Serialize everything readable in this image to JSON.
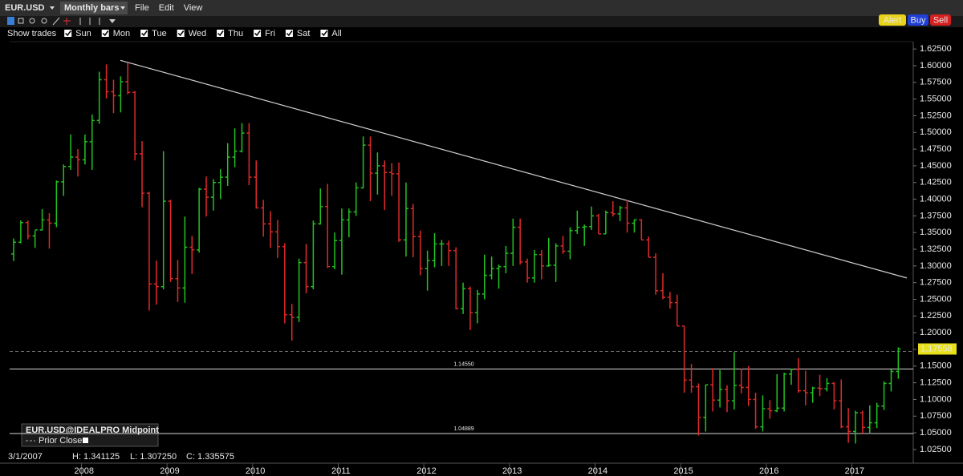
{
  "toolbar": {
    "symbol": "EUR.USD",
    "bar_type": "Monthly bars",
    "menus": [
      "File",
      "Edit",
      "View"
    ],
    "buttons": [
      "Alert",
      "Buy",
      "Sell"
    ]
  },
  "filter": {
    "label": "Show trades",
    "days": [
      "Sun",
      "Mon",
      "Tue",
      "Wed",
      "Thu",
      "Fri",
      "Sat",
      "All"
    ]
  },
  "legend": {
    "title": "EUR.USD@IDEALPRO Midpoint",
    "prior_close": "Prior Close"
  },
  "status": {
    "date": "3/1/2007",
    "high": "H: 1.341125",
    "low": "L: 1.307250",
    "close": "C: 1.335575"
  },
  "chart_data": {
    "type": "ohlc",
    "categories": [
      null,
      null,
      null,
      null,
      null,
      null,
      null,
      null,
      null,
      null,
      "2008",
      null,
      null,
      null,
      null,
      null,
      null,
      null,
      null,
      null,
      null,
      null,
      "2009",
      null,
      null,
      null,
      null,
      null,
      null,
      null,
      null,
      null,
      null,
      null,
      "2010",
      null,
      null,
      null,
      null,
      null,
      null,
      null,
      null,
      null,
      null,
      null,
      "2011",
      null,
      null,
      null,
      null,
      null,
      null,
      null,
      null,
      null,
      null,
      null,
      "2012",
      null,
      null,
      null,
      null,
      null,
      null,
      null,
      null,
      null,
      null,
      null,
      "2013",
      null,
      null,
      null,
      null,
      null,
      null,
      null,
      null,
      null,
      null,
      null,
      "2014",
      null,
      null,
      null,
      null,
      null,
      null,
      null,
      null,
      null,
      null,
      null,
      "2015",
      null,
      null,
      null,
      null,
      null,
      null,
      null,
      null,
      null,
      null,
      null,
      "2016",
      null,
      null,
      null,
      null,
      null,
      null,
      null,
      null,
      null,
      null,
      null,
      "2017",
      null,
      null,
      null,
      null,
      null,
      null
    ],
    "open": [
      1.318,
      1.3356,
      1.365,
      1.345,
      1.354,
      1.369,
      1.364,
      1.426,
      1.449,
      1.463,
      1.459,
      1.486,
      1.518,
      1.579,
      1.561,
      1.555,
      1.576,
      1.56,
      1.468,
      1.409,
      1.273,
      1.269,
      1.397,
      1.281,
      1.267,
      1.328,
      1.324,
      1.415,
      1.403,
      1.425,
      1.433,
      1.463,
      1.472,
      1.499,
      1.433,
      1.387,
      1.363,
      1.351,
      1.329,
      1.227,
      1.223,
      1.305,
      1.269,
      1.363,
      1.389,
      1.299,
      1.338,
      1.369,
      1.381,
      1.417,
      1.481,
      1.439,
      1.45,
      1.44,
      1.438,
      1.339,
      1.386,
      1.344,
      1.296,
      1.308,
      1.333,
      1.333,
      1.323,
      1.236,
      1.266,
      1.23,
      1.258,
      1.286,
      1.296,
      1.299,
      1.319,
      1.358,
      1.306,
      1.282,
      1.317,
      1.3,
      1.301,
      1.33,
      1.322,
      1.353,
      1.358,
      1.359,
      1.375,
      1.348,
      1.38,
      1.378,
      1.387,
      1.364,
      1.369,
      1.339,
      1.313,
      1.263,
      1.253,
      1.245,
      1.21,
      1.129,
      1.119,
      1.073,
      1.122,
      1.099,
      1.115,
      1.098,
      1.121,
      1.118,
      1.1,
      1.059,
      1.086,
      1.083,
      1.087,
      1.138,
      1.145,
      1.113,
      1.11,
      1.117,
      1.116,
      1.124,
      1.098,
      1.059,
      1.052,
      1.08,
      1.058,
      1.065,
      1.09,
      1.124,
      1.142
    ],
    "high": [
      1.3411,
      1.3682,
      1.368,
      1.353,
      1.385,
      1.379,
      1.428,
      1.452,
      1.497,
      1.475,
      1.497,
      1.527,
      1.591,
      1.602,
      1.579,
      1.584,
      1.604,
      1.562,
      1.487,
      1.411,
      1.308,
      1.472,
      1.399,
      1.309,
      1.374,
      1.345,
      1.417,
      1.434,
      1.43,
      1.445,
      1.484,
      1.506,
      1.514,
      1.514,
      1.458,
      1.399,
      1.382,
      1.369,
      1.334,
      1.243,
      1.311,
      1.333,
      1.368,
      1.416,
      1.423,
      1.35,
      1.386,
      1.386,
      1.425,
      1.494,
      1.494,
      1.47,
      1.458,
      1.454,
      1.455,
      1.425,
      1.393,
      1.353,
      1.323,
      1.349,
      1.339,
      1.338,
      1.328,
      1.275,
      1.269,
      1.264,
      1.317,
      1.314,
      1.302,
      1.33,
      1.371,
      1.371,
      1.311,
      1.324,
      1.324,
      1.342,
      1.334,
      1.345,
      1.358,
      1.383,
      1.362,
      1.389,
      1.378,
      1.383,
      1.397,
      1.39,
      1.399,
      1.37,
      1.37,
      1.344,
      1.319,
      1.289,
      1.261,
      1.257,
      1.21,
      1.153,
      1.124,
      1.122,
      1.147,
      1.144,
      1.121,
      1.171,
      1.146,
      1.15,
      1.11,
      1.106,
      1.099,
      1.138,
      1.14,
      1.146,
      1.162,
      1.143,
      1.119,
      1.137,
      1.132,
      1.126,
      1.13,
      1.087,
      1.083,
      1.083,
      1.091,
      1.095,
      1.127,
      1.145,
      1.178
    ],
    "low": [
      1.3073,
      1.334,
      1.34,
      1.327,
      1.353,
      1.326,
      1.358,
      1.405,
      1.444,
      1.434,
      1.452,
      1.444,
      1.513,
      1.551,
      1.529,
      1.53,
      1.557,
      1.458,
      1.388,
      1.233,
      1.242,
      1.265,
      1.276,
      1.246,
      1.245,
      1.288,
      1.32,
      1.374,
      1.383,
      1.4,
      1.42,
      1.448,
      1.47,
      1.421,
      1.386,
      1.344,
      1.327,
      1.312,
      1.214,
      1.188,
      1.216,
      1.259,
      1.265,
      1.362,
      1.297,
      1.295,
      1.287,
      1.343,
      1.375,
      1.416,
      1.397,
      1.407,
      1.384,
      1.405,
      1.336,
      1.314,
      1.313,
      1.286,
      1.263,
      1.298,
      1.3,
      1.3,
      1.235,
      1.228,
      1.204,
      1.214,
      1.25,
      1.28,
      1.266,
      1.289,
      1.3,
      1.302,
      1.275,
      1.275,
      1.28,
      1.299,
      1.276,
      1.318,
      1.31,
      1.348,
      1.33,
      1.354,
      1.348,
      1.348,
      1.374,
      1.367,
      1.35,
      1.35,
      1.339,
      1.313,
      1.257,
      1.25,
      1.236,
      1.21,
      1.11,
      1.11,
      1.046,
      1.052,
      1.082,
      1.088,
      1.081,
      1.085,
      1.109,
      1.09,
      1.056,
      1.052,
      1.071,
      1.081,
      1.082,
      1.122,
      1.11,
      1.091,
      1.095,
      1.105,
      1.112,
      1.085,
      1.057,
      1.035,
      1.034,
      1.049,
      1.05,
      1.057,
      1.084,
      1.112,
      1.131
    ],
    "close": [
      1.3356,
      1.365,
      1.345,
      1.354,
      1.369,
      1.364,
      1.426,
      1.449,
      1.463,
      1.459,
      1.486,
      1.518,
      1.579,
      1.561,
      1.555,
      1.576,
      1.56,
      1.468,
      1.409,
      1.273,
      1.269,
      1.397,
      1.281,
      1.267,
      1.328,
      1.324,
      1.415,
      1.403,
      1.425,
      1.433,
      1.463,
      1.472,
      1.499,
      1.433,
      1.387,
      1.363,
      1.351,
      1.329,
      1.227,
      1.223,
      1.305,
      1.269,
      1.363,
      1.389,
      1.299,
      1.338,
      1.369,
      1.381,
      1.417,
      1.481,
      1.439,
      1.45,
      1.44,
      1.438,
      1.339,
      1.386,
      1.344,
      1.296,
      1.308,
      1.333,
      1.333,
      1.323,
      1.236,
      1.266,
      1.23,
      1.258,
      1.286,
      1.296,
      1.299,
      1.319,
      1.358,
      1.306,
      1.282,
      1.317,
      1.3,
      1.301,
      1.33,
      1.322,
      1.353,
      1.358,
      1.359,
      1.375,
      1.348,
      1.38,
      1.378,
      1.387,
      1.364,
      1.369,
      1.339,
      1.313,
      1.263,
      1.253,
      1.245,
      1.21,
      1.129,
      1.119,
      1.073,
      1.122,
      1.099,
      1.115,
      1.098,
      1.121,
      1.118,
      1.1,
      1.059,
      1.086,
      1.083,
      1.087,
      1.138,
      1.145,
      1.113,
      1.11,
      1.117,
      1.116,
      1.124,
      1.098,
      1.059,
      1.052,
      1.08,
      1.058,
      1.065,
      1.09,
      1.124,
      1.142,
      1.1756
    ],
    "up_color": "#22c322",
    "down_color": "#e02a2a",
    "ylim": [
      1.0045,
      1.636
    ],
    "yticks": [
      {
        "value": 1.025,
        "label": "1.02500"
      },
      {
        "value": 1.05,
        "label": "1.05000"
      },
      {
        "value": 1.075,
        "label": "1.07500"
      },
      {
        "value": 1.1,
        "label": "1.10000"
      },
      {
        "value": 1.125,
        "label": "1.12500"
      },
      {
        "value": 1.15,
        "label": "1.15000"
      },
      {
        "value": 1.175,
        "label": "1.17500"
      },
      {
        "value": 1.2,
        "label": "1.20000"
      },
      {
        "value": 1.225,
        "label": "1.22500"
      },
      {
        "value": 1.25,
        "label": "1.25000"
      },
      {
        "value": 1.275,
        "label": "1.27500"
      },
      {
        "value": 1.3,
        "label": "1.30000"
      },
      {
        "value": 1.325,
        "label": "1.32500"
      },
      {
        "value": 1.35,
        "label": "1.35000"
      },
      {
        "value": 1.375,
        "label": "1.37500"
      },
      {
        "value": 1.4,
        "label": "1.40000"
      },
      {
        "value": 1.425,
        "label": "1.42500"
      },
      {
        "value": 1.45,
        "label": "1.45000"
      },
      {
        "value": 1.475,
        "label": "1.47500"
      },
      {
        "value": 1.5,
        "label": "1.50000"
      },
      {
        "value": 1.525,
        "label": "1.52500"
      },
      {
        "value": 1.55,
        "label": "1.55000"
      },
      {
        "value": 1.575,
        "label": "1.57500"
      },
      {
        "value": 1.6,
        "label": "1.60000"
      },
      {
        "value": 1.625,
        "label": "1.62500"
      }
    ],
    "levels": [
      {
        "value": 1.1455,
        "label": "1.14550"
      },
      {
        "value": 1.04889,
        "label": "1.04889"
      }
    ],
    "prior_close_line": 1.172,
    "last_price": {
      "value": 1.17558,
      "label": "1.17558"
    },
    "trendline": [
      1.608,
      1.282
    ]
  }
}
